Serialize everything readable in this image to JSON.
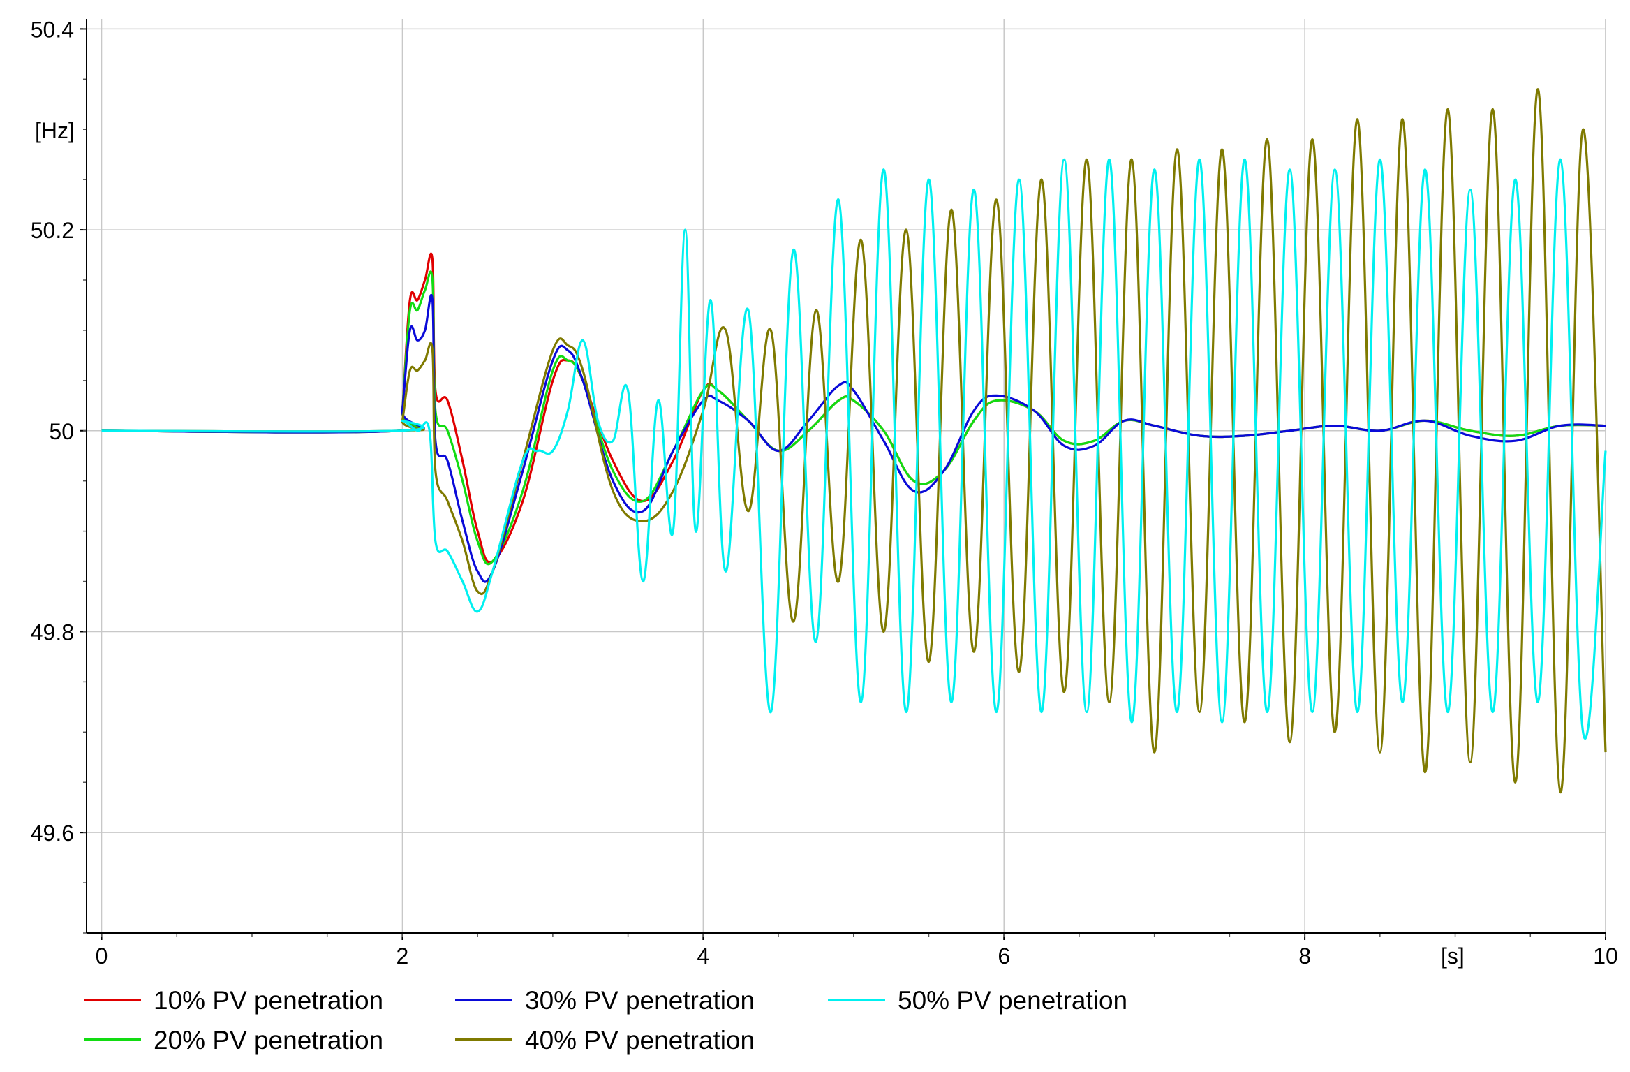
{
  "chart_data": {
    "type": "line",
    "title": "",
    "xlabel": "[s]",
    "ylabel": "[Hz]",
    "xlim": [
      -0.1,
      10
    ],
    "ylim": [
      49.5,
      50.41
    ],
    "grid": true,
    "x_ticks": [
      0,
      2,
      4,
      6,
      8,
      10
    ],
    "x_tick_labels": [
      "0",
      "2",
      "4",
      "6",
      "8",
      "10"
    ],
    "y_ticks": [
      49.6,
      49.8,
      50,
      50.2,
      50.4
    ],
    "y_tick_labels": [
      "49.6",
      "49.8",
      "50",
      "50.2",
      "50.4"
    ],
    "legend_position": "bottom",
    "series": [
      {
        "name": "10% PV penetration",
        "color": "#e00000",
        "x": [
          0,
          1.98,
          2.0,
          2.05,
          2.1,
          2.15,
          2.2,
          2.22,
          2.3,
          2.4,
          2.5,
          2.6,
          2.8,
          3.0,
          3.1,
          3.2,
          3.4,
          3.6,
          3.8,
          4.0,
          4.1,
          4.3,
          4.5,
          4.7,
          4.9,
          5.0,
          5.2,
          5.4,
          5.6,
          5.8,
          5.95,
          6.2,
          6.4,
          6.6,
          6.8,
          7.0,
          7.3,
          7.6,
          7.9,
          8.2,
          8.5,
          8.8,
          9.1,
          9.4,
          9.7,
          10.0
        ],
        "y": [
          50.0,
          50.0,
          50.02,
          50.13,
          50.13,
          50.15,
          50.17,
          50.04,
          50.03,
          49.97,
          49.9,
          49.87,
          49.93,
          50.05,
          50.07,
          50.05,
          49.97,
          49.93,
          49.97,
          50.04,
          50.04,
          50.01,
          49.98,
          50.0,
          50.03,
          50.03,
          50.0,
          49.95,
          49.96,
          50.01,
          50.03,
          50.02,
          49.99,
          49.99,
          50.01,
          50.005,
          49.995,
          49.995,
          50.0,
          50.005,
          50.0,
          50.01,
          50.0,
          49.995,
          50.005,
          50.005
        ]
      },
      {
        "name": "20% PV penetration",
        "color": "#12dc12",
        "x": [
          0,
          1.98,
          2.0,
          2.05,
          2.1,
          2.15,
          2.2,
          2.22,
          2.3,
          2.4,
          2.5,
          2.6,
          2.8,
          3.0,
          3.1,
          3.2,
          3.4,
          3.6,
          3.8,
          4.0,
          4.1,
          4.3,
          4.5,
          4.7,
          4.9,
          5.0,
          5.2,
          5.4,
          5.6,
          5.8,
          5.95,
          6.2,
          6.4,
          6.6,
          6.8,
          7.0,
          7.3,
          7.6,
          7.9,
          8.2,
          8.5,
          8.8,
          9.1,
          9.4,
          9.7,
          10.0
        ],
        "y": [
          50.0,
          50.0,
          50.02,
          50.12,
          50.12,
          50.14,
          50.15,
          50.02,
          50.0,
          49.95,
          49.89,
          49.87,
          49.94,
          50.06,
          50.07,
          50.05,
          49.96,
          49.93,
          49.98,
          50.04,
          50.04,
          50.01,
          49.98,
          50.0,
          50.03,
          50.03,
          50.0,
          49.95,
          49.96,
          50.01,
          50.03,
          50.02,
          49.99,
          49.99,
          50.01,
          50.005,
          49.995,
          49.995,
          50.0,
          50.005,
          50.0,
          50.01,
          50.0,
          49.995,
          50.005,
          50.005
        ]
      },
      {
        "name": "30% PV penetration",
        "color": "#0a0ad8",
        "x": [
          0,
          1.98,
          2.0,
          2.05,
          2.1,
          2.15,
          2.2,
          2.22,
          2.3,
          2.4,
          2.5,
          2.6,
          2.8,
          3.0,
          3.1,
          3.2,
          3.4,
          3.6,
          3.8,
          4.0,
          4.1,
          4.3,
          4.5,
          4.7,
          4.9,
          5.0,
          5.2,
          5.4,
          5.6,
          5.8,
          5.95,
          6.2,
          6.4,
          6.6,
          6.8,
          7.0,
          7.3,
          7.6,
          7.9,
          8.2,
          8.5,
          8.8,
          9.1,
          9.4,
          9.7,
          10.0
        ],
        "y": [
          50.0,
          50.0,
          50.02,
          50.1,
          50.09,
          50.1,
          50.13,
          49.99,
          49.97,
          49.91,
          49.86,
          49.86,
          49.96,
          50.07,
          50.08,
          50.05,
          49.95,
          49.92,
          49.98,
          50.03,
          50.03,
          50.01,
          49.98,
          50.01,
          50.045,
          50.04,
          49.99,
          49.94,
          49.96,
          50.02,
          50.035,
          50.02,
          49.985,
          49.985,
          50.01,
          50.005,
          49.995,
          49.995,
          50.0,
          50.005,
          50.0,
          50.01,
          49.995,
          49.99,
          50.005,
          50.005
        ]
      },
      {
        "name": "40% PV penetration",
        "color": "#7f7a00",
        "x": [
          0,
          1.98,
          2.0,
          2.05,
          2.1,
          2.15,
          2.2,
          2.22,
          2.3,
          2.4,
          2.5,
          2.6,
          2.8,
          3.0,
          3.1,
          3.2,
          3.4,
          3.6,
          3.8,
          4.0,
          4.15,
          4.3,
          4.45,
          4.6,
          4.75,
          4.9,
          5.05,
          5.2,
          5.35,
          5.5,
          5.65,
          5.8,
          5.95,
          6.1,
          6.25,
          6.4,
          6.55,
          6.7,
          6.85,
          7.0,
          7.15,
          7.3,
          7.45,
          7.6,
          7.75,
          7.9,
          8.05,
          8.2,
          8.35,
          8.5,
          8.65,
          8.8,
          8.95,
          9.1,
          9.25,
          9.4,
          9.55,
          9.7,
          9.85,
          10.0
        ],
        "y": [
          50.0,
          50.0,
          50.01,
          50.06,
          50.06,
          50.07,
          50.08,
          49.96,
          49.93,
          49.89,
          49.84,
          49.86,
          49.97,
          50.08,
          50.085,
          50.06,
          49.94,
          49.91,
          49.94,
          50.02,
          50.1,
          49.92,
          50.1,
          49.81,
          50.12,
          49.85,
          50.19,
          49.8,
          50.2,
          49.77,
          50.22,
          49.78,
          50.23,
          49.76,
          50.25,
          49.74,
          50.27,
          49.73,
          50.27,
          49.68,
          50.28,
          49.72,
          50.28,
          49.71,
          50.29,
          49.69,
          50.29,
          49.7,
          50.31,
          49.68,
          50.31,
          49.66,
          50.32,
          49.67,
          50.32,
          49.65,
          50.34,
          49.64,
          50.3,
          49.68
        ]
      },
      {
        "name": "50% PV penetration",
        "color": "#00f0f0",
        "x": [
          0,
          1.98,
          2.0,
          2.1,
          2.18,
          2.22,
          2.3,
          2.4,
          2.5,
          2.6,
          2.8,
          2.9,
          3.0,
          3.1,
          3.2,
          3.3,
          3.4,
          3.5,
          3.6,
          3.7,
          3.8,
          3.88,
          3.95,
          4.05,
          4.15,
          4.3,
          4.45,
          4.6,
          4.75,
          4.9,
          5.05,
          5.2,
          5.35,
          5.5,
          5.65,
          5.8,
          5.95,
          6.1,
          6.25,
          6.4,
          6.55,
          6.7,
          6.85,
          7.0,
          7.15,
          7.3,
          7.45,
          7.6,
          7.75,
          7.9,
          8.05,
          8.2,
          8.35,
          8.5,
          8.65,
          8.8,
          8.95,
          9.1,
          9.25,
          9.4,
          9.55,
          9.7,
          9.85,
          10.0
        ],
        "y": [
          50.0,
          50.0,
          50.01,
          50.0,
          50.0,
          49.89,
          49.88,
          49.85,
          49.82,
          49.86,
          49.97,
          49.98,
          49.98,
          50.02,
          50.09,
          50.01,
          49.99,
          50.04,
          49.85,
          50.03,
          49.9,
          50.2,
          49.9,
          50.13,
          49.86,
          50.12,
          49.72,
          50.18,
          49.79,
          50.23,
          49.73,
          50.26,
          49.72,
          50.25,
          49.73,
          50.24,
          49.72,
          50.25,
          49.72,
          50.27,
          49.72,
          50.27,
          49.71,
          50.26,
          49.72,
          50.27,
          49.71,
          50.27,
          49.72,
          50.26,
          49.72,
          50.26,
          49.72,
          50.27,
          49.73,
          50.26,
          49.72,
          50.24,
          49.72,
          50.25,
          49.73,
          50.27,
          49.7,
          49.98
        ]
      }
    ]
  }
}
